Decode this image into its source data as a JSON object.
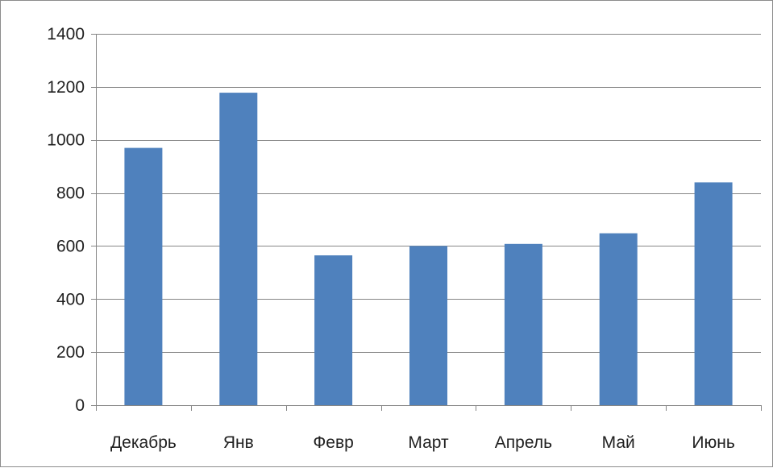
{
  "chart_data": {
    "type": "bar",
    "title": "",
    "xlabel": "",
    "ylabel": "",
    "categories": [
      "Декабрь",
      "Янв",
      "Февр",
      "Март",
      "Апрель",
      "Май",
      "Июнь"
    ],
    "series": [
      {
        "values": [
          970,
          1178,
          565,
          600,
          608,
          648,
          840
        ],
        "color": "#4f81bd"
      }
    ],
    "ylim": [
      0,
      1400
    ],
    "yticks": [
      0,
      200,
      400,
      600,
      800,
      1000,
      1200,
      1400
    ],
    "grid": true,
    "legend": "none",
    "colors": {
      "bar": "#4f81bd",
      "grid": "#868686",
      "axis": "#868686",
      "text": "#1f1f1f"
    }
  }
}
